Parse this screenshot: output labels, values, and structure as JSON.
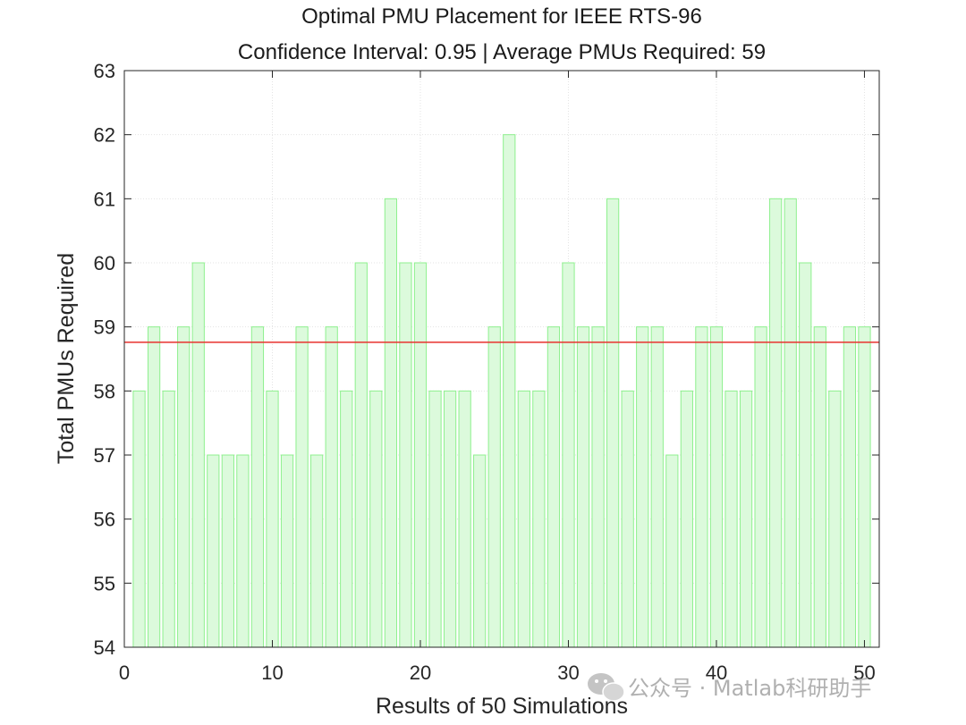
{
  "chart_data": {
    "type": "bar",
    "title": "Optimal PMU Placement for IEEE RTS-96",
    "subtitle": "Confidence Interval: 0.95 | Average PMUs Required: 59",
    "xlabel": "Results of 50 Simulations",
    "ylabel": "Total PMUs Required",
    "xlim": [
      0,
      51
    ],
    "ylim": [
      54,
      63
    ],
    "xticks": [
      0,
      10,
      20,
      30,
      40,
      50
    ],
    "yticks": [
      54,
      55,
      56,
      57,
      58,
      59,
      60,
      61,
      62,
      63
    ],
    "grid": true,
    "x": [
      1,
      2,
      3,
      4,
      5,
      6,
      7,
      8,
      9,
      10,
      11,
      12,
      13,
      14,
      15,
      16,
      17,
      18,
      19,
      20,
      21,
      22,
      23,
      24,
      25,
      26,
      27,
      28,
      29,
      30,
      31,
      32,
      33,
      34,
      35,
      36,
      37,
      38,
      39,
      40,
      41,
      42,
      43,
      44,
      45,
      46,
      47,
      48,
      49,
      50
    ],
    "values": [
      58,
      59,
      58,
      59,
      60,
      57,
      57,
      57,
      59,
      58,
      57,
      59,
      57,
      59,
      58,
      60,
      58,
      61,
      60,
      60,
      58,
      58,
      58,
      57,
      59,
      62,
      58,
      58,
      59,
      60,
      59,
      59,
      61,
      58,
      59,
      59,
      57,
      58,
      59,
      59,
      58,
      58,
      59,
      61,
      61,
      60,
      59,
      58,
      59,
      59
    ],
    "reference_line": {
      "y": 58.76,
      "color": "#e8322e"
    },
    "bar_fill_color": "#dcfadc",
    "bar_edge_color": "#8ef08e"
  },
  "watermark": {
    "icon": "wechat-icon",
    "text": "公众号 · Matlab科研助手"
  }
}
